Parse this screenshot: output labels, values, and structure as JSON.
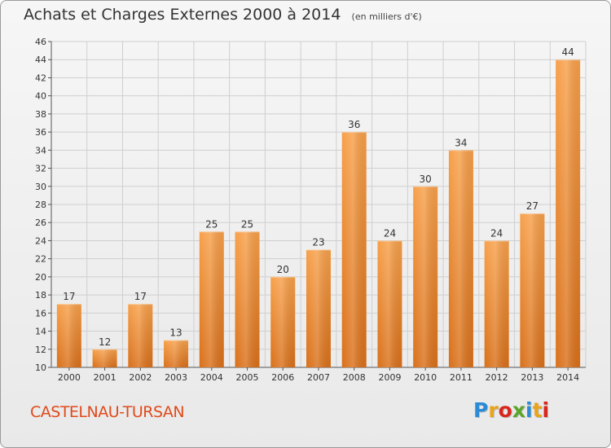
{
  "header": {
    "title": "Achats et Charges Externes 2000 à 2014",
    "unit": "(en milliers d'€)"
  },
  "footer": {
    "town": "CASTELNAU-TURSAN",
    "brand_letters": [
      "P",
      "r",
      "o",
      "x",
      "i",
      "t",
      "i"
    ],
    "brand_colors": [
      "#2a8bd6",
      "#e8a41b",
      "#d9261c",
      "#5aa52a",
      "#2a8bd6",
      "#e8a41b",
      "#d9261c"
    ]
  },
  "colors": {
    "bar": "#f28f2a",
    "bar_dark": "#d9701a",
    "grid": "#cfcfcf",
    "axis": "#555555",
    "label": "#333333"
  },
  "chart_data": {
    "type": "bar",
    "categories": [
      "2000",
      "2001",
      "2002",
      "2003",
      "2004",
      "2005",
      "2006",
      "2007",
      "2008",
      "2009",
      "2010",
      "2011",
      "2012",
      "2013",
      "2014"
    ],
    "values": [
      17,
      12,
      17,
      13,
      25,
      25,
      20,
      23,
      36,
      24,
      30,
      34,
      24,
      27,
      44
    ],
    "value_labels": [
      "17",
      "12",
      "17",
      "13",
      "25",
      "25",
      "20",
      "23",
      "36",
      "24",
      "30",
      "34",
      "24",
      "27",
      "44"
    ],
    "title": "Achats et Charges Externes 2000 à 2014",
    "xlabel": "",
    "ylabel": "",
    "ylim": [
      10,
      46
    ],
    "yticks": [
      "10",
      "12",
      "14",
      "16",
      "18",
      "20",
      "22",
      "24",
      "26",
      "28",
      "30",
      "32",
      "34",
      "36",
      "38",
      "40",
      "42",
      "44",
      "46"
    ],
    "grid": true
  }
}
